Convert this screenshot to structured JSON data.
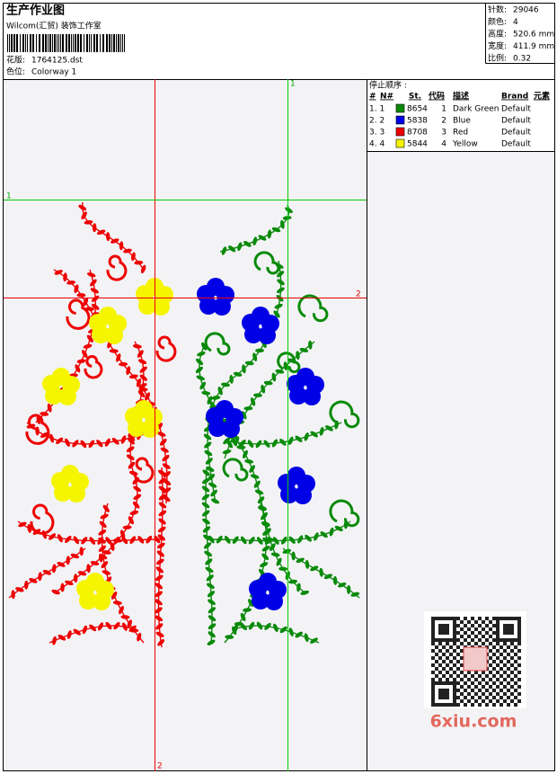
{
  "header": {
    "title": "生产作业图",
    "company": "Wilcom(汇贸) 装饰工作室"
  },
  "design": {
    "file_label": "花版:",
    "file": "1764125.dst",
    "colorway_label": "色位:",
    "colorway": "Colorway 1"
  },
  "stats": [
    {
      "label": "针数:",
      "value": "29046"
    },
    {
      "label": "颜色:",
      "value": "4"
    },
    {
      "label": "高度:",
      "value": "520.6 mm"
    },
    {
      "label": "宽度:",
      "value": "411.9 mm"
    },
    {
      "label": "比例:",
      "value": "0.32"
    }
  ],
  "stop_sequence": {
    "title": "停止顺序 :",
    "columns": [
      "#",
      "N#",
      "St.",
      "代码",
      "描述",
      "Brand",
      "元素"
    ],
    "rows": [
      {
        "index": "1. 1",
        "color": "#0a8a0a",
        "stitches": "8654",
        "code": "1",
        "description": "Dark Green",
        "brand": "Default"
      },
      {
        "index": "2. 2",
        "color": "#0000e6",
        "stitches": "5838",
        "code": "2",
        "description": "Blue",
        "brand": "Default"
      },
      {
        "index": "3. 3",
        "color": "#ee0000",
        "stitches": "8708",
        "code": "3",
        "description": "Red",
        "brand": "Default"
      },
      {
        "index": "4. 4",
        "color": "#f5f500",
        "stitches": "5844",
        "code": "4",
        "description": "Yellow",
        "brand": "Default"
      }
    ]
  },
  "guides": {
    "green_vertical": "1",
    "green_horizontal": "1",
    "red_horizontal": "2",
    "red_vertical": "2"
  },
  "watermark": "6xiu.com"
}
